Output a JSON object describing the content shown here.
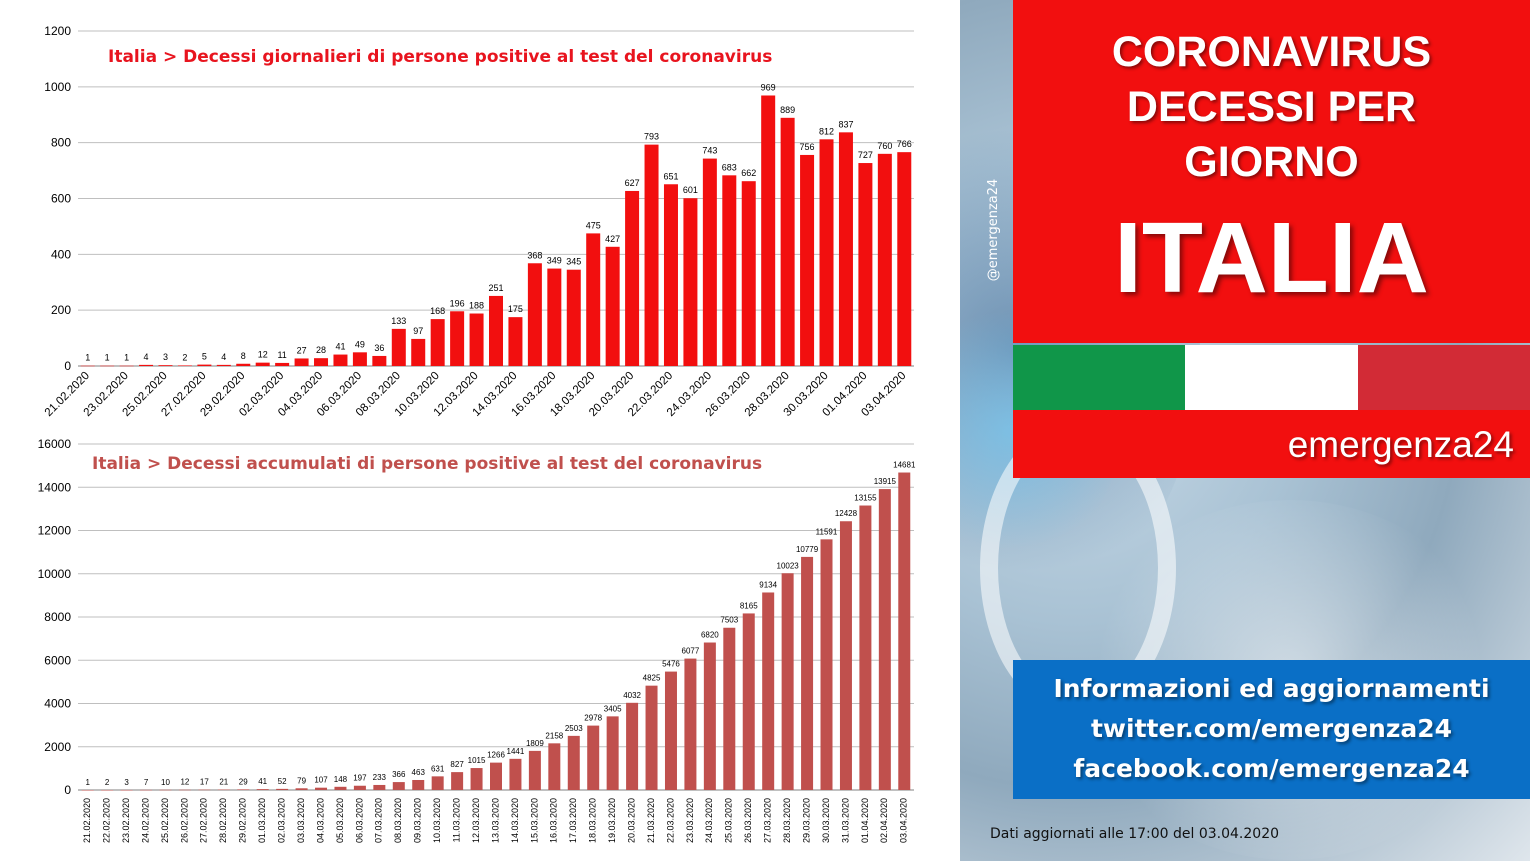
{
  "colors": {
    "daily_bar": "#f20f0f",
    "cumulative_bar": "#c0504d",
    "title_box": "#f20f0f",
    "info_box": "#0a6fc6",
    "flag_green": "#109649",
    "flag_white": "#ffffff",
    "flag_red": "#d22b36"
  },
  "panel": {
    "title_lines": [
      "CORONAVIRUS",
      "DECESSI PER",
      "GIORNO"
    ],
    "title_main": "ITALIA",
    "brand": "emergenza24",
    "handle": "@emergenza24",
    "info_lines": [
      "Informazioni ed aggiornamenti",
      "twitter.com/emergenza24",
      "facebook.com/emergenza24"
    ],
    "footer_note": "Dati aggiornati alle 17:00 del 03.04.2020"
  },
  "chart_data": [
    {
      "type": "bar",
      "title": "Italia > Decessi giornalieri di persone positive al test del coronavirus",
      "ylim": [
        0,
        1200
      ],
      "yticks": [
        "0",
        "200",
        "400",
        "600",
        "800",
        "1000",
        "1200"
      ],
      "categories": [
        "21.02.2020",
        "22.02.2020",
        "23.02.2020",
        "24.02.2020",
        "25.02.2020",
        "26.02.2020",
        "27.02.2020",
        "28.02.2020",
        "29.02.2020",
        "01.03.2020",
        "02.03.2020",
        "03.03.2020",
        "04.03.2020",
        "05.03.2020",
        "06.03.2020",
        "07.03.2020",
        "08.03.2020",
        "09.03.2020",
        "10.03.2020",
        "11.03.2020",
        "12.03.2020",
        "13.03.2020",
        "14.03.2020",
        "15.03.2020",
        "16.03.2020",
        "17.03.2020",
        "18.03.2020",
        "19.03.2020",
        "20.03.2020",
        "21.03.2020",
        "22.03.2020",
        "23.03.2020",
        "24.03.2020",
        "25.03.2020",
        "26.03.2020",
        "27.03.2020",
        "28.03.2020",
        "29.03.2020",
        "30.03.2020",
        "31.03.2020",
        "01.04.2020",
        "02.04.2020",
        "03.04.2020"
      ],
      "x_tick_labels": [
        "21.02.2020",
        "23.02.2020",
        "25.02.2020",
        "27.02.2020",
        "29.02.2020",
        "02.03.2020",
        "04.03.2020",
        "06.03.2020",
        "08.03.2020",
        "10.03.2020",
        "12.03.2020",
        "14.03.2020",
        "16.03.2020",
        "18.03.2020",
        "20.03.2020",
        "22.03.2020",
        "24.03.2020",
        "26.03.2020",
        "28.03.2020",
        "30.03.2020",
        "01.04.2020",
        "03.04.2020"
      ],
      "values": [
        1,
        1,
        1,
        4,
        3,
        2,
        5,
        4,
        8,
        12,
        11,
        27,
        28,
        41,
        49,
        36,
        133,
        97,
        168,
        196,
        188,
        251,
        175,
        368,
        349,
        345,
        475,
        427,
        627,
        793,
        651,
        601,
        743,
        683,
        662,
        969,
        889,
        756,
        812,
        837,
        727,
        760,
        766
      ],
      "grid": true,
      "xlabel": "",
      "ylabel": ""
    },
    {
      "type": "bar",
      "title": "Italia > Decessi accumulati di persone positive al test del coronavirus",
      "ylim": [
        0,
        16000
      ],
      "yticks": [
        "0",
        "2000",
        "4000",
        "6000",
        "8000",
        "10000",
        "12000",
        "14000",
        "16000"
      ],
      "categories": [
        "21.02.2020",
        "22.02.2020",
        "23.02.2020",
        "24.02.2020",
        "25.02.2020",
        "26.02.2020",
        "27.02.2020",
        "28.02.2020",
        "29.02.2020",
        "01.03.2020",
        "02.03.2020",
        "03.03.2020",
        "04.03.2020",
        "05.03.2020",
        "06.03.2020",
        "07.03.2020",
        "08.03.2020",
        "09.03.2020",
        "10.03.2020",
        "11.03.2020",
        "12.03.2020",
        "13.03.2020",
        "14.03.2020",
        "15.03.2020",
        "16.03.2020",
        "17.03.2020",
        "18.03.2020",
        "19.03.2020",
        "20.03.2020",
        "21.03.2020",
        "22.03.2020",
        "23.03.2020",
        "24.03.2020",
        "25.03.2020",
        "26.03.2020",
        "27.03.2020",
        "28.03.2020",
        "29.03.2020",
        "30.03.2020",
        "31.03.2020",
        "01.04.2020",
        "02.04.2020",
        "03.04.2020"
      ],
      "x_tick_labels": [
        "21.02.2020",
        "22.02.2020",
        "23.02.2020",
        "24.02.2020",
        "25.02.2020",
        "26.02.2020",
        "27.02.2020",
        "28.02.2020",
        "29.02.2020",
        "01.03.2020",
        "02.03.2020",
        "03.03.2020",
        "04.03.2020",
        "05.03.2020",
        "06.03.2020",
        "07.03.2020",
        "08.03.2020",
        "09.03.2020",
        "10.03.2020",
        "11.03.2020",
        "12.03.2020",
        "13.03.2020",
        "14.03.2020",
        "15.03.2020",
        "16.03.2020",
        "17.03.2020",
        "18.03.2020",
        "19.03.2020",
        "20.03.2020",
        "21.03.2020",
        "22.03.2020",
        "23.03.2020",
        "24.03.2020",
        "25.03.2020",
        "26.03.2020",
        "27.03.2020",
        "28.03.2020",
        "29.03.2020",
        "30.03.2020",
        "31.03.2020",
        "01.04.2020",
        "02.04.2020",
        "03.04.2020"
      ],
      "values": [
        1,
        2,
        3,
        7,
        10,
        12,
        17,
        21,
        29,
        41,
        52,
        79,
        107,
        148,
        197,
        233,
        366,
        463,
        631,
        827,
        1015,
        1266,
        1441,
        1809,
        2158,
        2503,
        2978,
        3405,
        4032,
        4825,
        5476,
        6077,
        6820,
        7503,
        8165,
        9134,
        10023,
        10779,
        11591,
        12428,
        13155,
        13915,
        14681
      ],
      "grid": true,
      "xlabel": "",
      "ylabel": ""
    }
  ]
}
